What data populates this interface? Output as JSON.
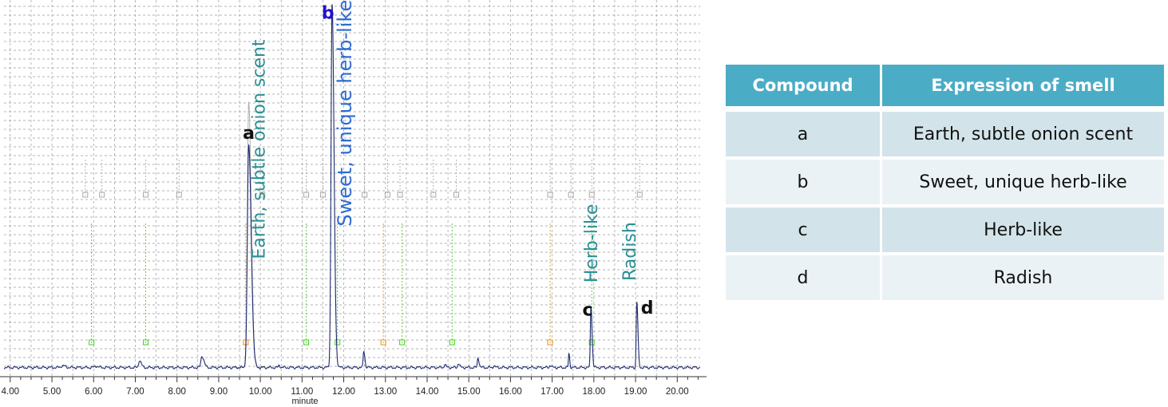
{
  "chart_data": {
    "type": "line",
    "xlabel": "minute",
    "xlim": [
      3.85,
      20.55
    ],
    "ylim": [
      0,
      100
    ],
    "x_ticks": [
      "4.00",
      "5.00",
      "6.00",
      "7.00",
      "8.00",
      "9.00",
      "10.00",
      "11.00",
      "12.00",
      "13.00",
      "14.00",
      "15.00",
      "16.00",
      "17.00",
      "18.00",
      "19.00",
      "20.00"
    ],
    "grid": true,
    "colors": {
      "trace": "#1c2a6e",
      "green": "#44cc22",
      "orange": "#e8901a",
      "gray": "#a8a8a8",
      "gray_trace": "#b0b0b0"
    },
    "baseline": 1.2,
    "peaks": [
      {
        "x": 5.25,
        "h": 0.5,
        "w": 0.05
      },
      {
        "x": 6.05,
        "h": 0.4,
        "w": 0.04
      },
      {
        "x": 7.1,
        "h": 2.0,
        "w": 0.03
      },
      {
        "x": 8.6,
        "h": 3.2,
        "w": 0.035
      },
      {
        "x": 9.72,
        "h": 61,
        "w": 0.045
      },
      {
        "x": 10.45,
        "h": 0.6,
        "w": 0.02
      },
      {
        "x": 11.72,
        "h": 100,
        "w": 0.035
      },
      {
        "x": 12.48,
        "h": 4.5,
        "w": 0.02
      },
      {
        "x": 14.42,
        "h": 0.9,
        "w": 0.02
      },
      {
        "x": 14.75,
        "h": 1.2,
        "w": 0.02
      },
      {
        "x": 15.22,
        "h": 2.7,
        "w": 0.02
      },
      {
        "x": 15.6,
        "h": 0.5,
        "w": 0.02
      },
      {
        "x": 16.95,
        "h": 0.7,
        "w": 0.02
      },
      {
        "x": 17.4,
        "h": 3.8,
        "w": 0.015
      },
      {
        "x": 17.93,
        "h": 17.0,
        "w": 0.02
      },
      {
        "x": 19.03,
        "h": 18.0,
        "w": 0.02
      }
    ],
    "gray_peak": {
      "x": 9.72,
      "h": 73
    },
    "peak_labels": [
      {
        "text": "a",
        "x": 9.72,
        "y": 64,
        "color": "#111111"
      },
      {
        "text": "b",
        "x": 11.62,
        "y": 97,
        "color": "#2211cc"
      },
      {
        "text": "c",
        "x": 17.85,
        "y": 15.5,
        "color": "#111111"
      },
      {
        "text": "d",
        "x": 19.28,
        "y": 16,
        "color": "#111111"
      }
    ],
    "annotations": [
      {
        "text": "Earth, subtle onion scent",
        "x": 10.1,
        "y": 31,
        "color": "#2a8f94",
        "size": 22
      },
      {
        "text": "Sweet, unique herb-like",
        "x": 12.18,
        "y": 40,
        "color": "#2d6bd0",
        "size": 24
      },
      {
        "text": "Herb-like",
        "x": 18.08,
        "y": 24.5,
        "color": "#2a8f94",
        "size": 22
      },
      {
        "text": "Radish",
        "x": 19.0,
        "y": 25,
        "color": "#2a8f94",
        "size": 22
      }
    ],
    "markers": [
      {
        "x": 5.95,
        "color": "#44cc22"
      },
      {
        "x": 7.25,
        "color": "#44cc22"
      },
      {
        "x": 9.65,
        "color": "#e8901a"
      },
      {
        "x": 11.1,
        "color": "#44cc22"
      },
      {
        "x": 11.85,
        "color": "#44cc22"
      },
      {
        "x": 12.95,
        "color": "#e8901a"
      },
      {
        "x": 13.4,
        "color": "#44cc22"
      },
      {
        "x": 14.6,
        "color": "#44cc22"
      },
      {
        "x": 16.95,
        "color": "#e8901a"
      },
      {
        "x": 17.95,
        "color": "#44cc22"
      },
      {
        "x": 5.8,
        "color": "#a8a8a8"
      },
      {
        "x": 6.2,
        "color": "#a8a8a8"
      },
      {
        "x": 7.25,
        "color": "#a8a8a8"
      },
      {
        "x": 8.05,
        "color": "#a8a8a8"
      },
      {
        "x": 10.05,
        "color": "#a8a8a8"
      },
      {
        "x": 11.1,
        "color": "#a8a8a8"
      },
      {
        "x": 11.5,
        "color": "#a8a8a8"
      },
      {
        "x": 12.5,
        "color": "#a8a8a8"
      },
      {
        "x": 13.05,
        "color": "#a8a8a8"
      },
      {
        "x": 13.35,
        "color": "#a8a8a8"
      },
      {
        "x": 14.15,
        "color": "#a8a8a8"
      },
      {
        "x": 14.7,
        "color": "#a8a8a8"
      },
      {
        "x": 16.95,
        "color": "#a8a8a8"
      },
      {
        "x": 17.45,
        "color": "#a8a8a8"
      },
      {
        "x": 17.95,
        "color": "#a8a8a8"
      },
      {
        "x": 19.1,
        "color": "#a8a8a8"
      }
    ]
  },
  "table": {
    "header_color": "#4bacc6",
    "headers": [
      "Compound",
      "Expression of smell"
    ],
    "rows": [
      [
        "a",
        "Earth, subtle onion scent"
      ],
      [
        "b",
        "Sweet, unique herb-like"
      ],
      [
        "c",
        "Herb-like"
      ],
      [
        "d",
        "Radish"
      ]
    ]
  }
}
